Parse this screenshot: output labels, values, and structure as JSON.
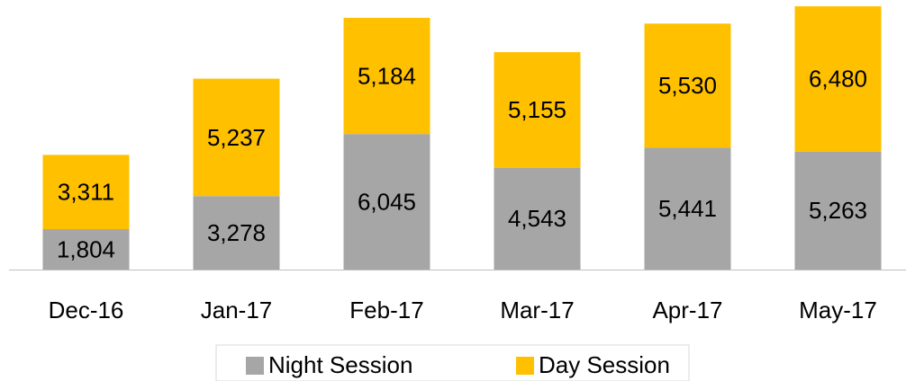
{
  "chart_data": {
    "type": "stacked_bar",
    "categories": [
      "Dec-16",
      "Jan-17",
      "Feb-17",
      "Mar-17",
      "Apr-17",
      "May-17"
    ],
    "series": [
      {
        "name": "Night Session",
        "color": "#a6a6a6",
        "values": [
          1804,
          3278,
          6045,
          4543,
          5441,
          5263
        ],
        "value_labels": [
          "1,804",
          "3,278",
          "6,045",
          "4,543",
          "5,441",
          "5,263"
        ]
      },
      {
        "name": "Day Session",
        "color": "#ffc000",
        "values": [
          3311,
          5237,
          5184,
          5155,
          5530,
          6480
        ],
        "value_labels": [
          "3,311",
          "5,237",
          "5,184",
          "5,155",
          "5,530",
          "6,480"
        ]
      }
    ],
    "legend": "bottom"
  }
}
